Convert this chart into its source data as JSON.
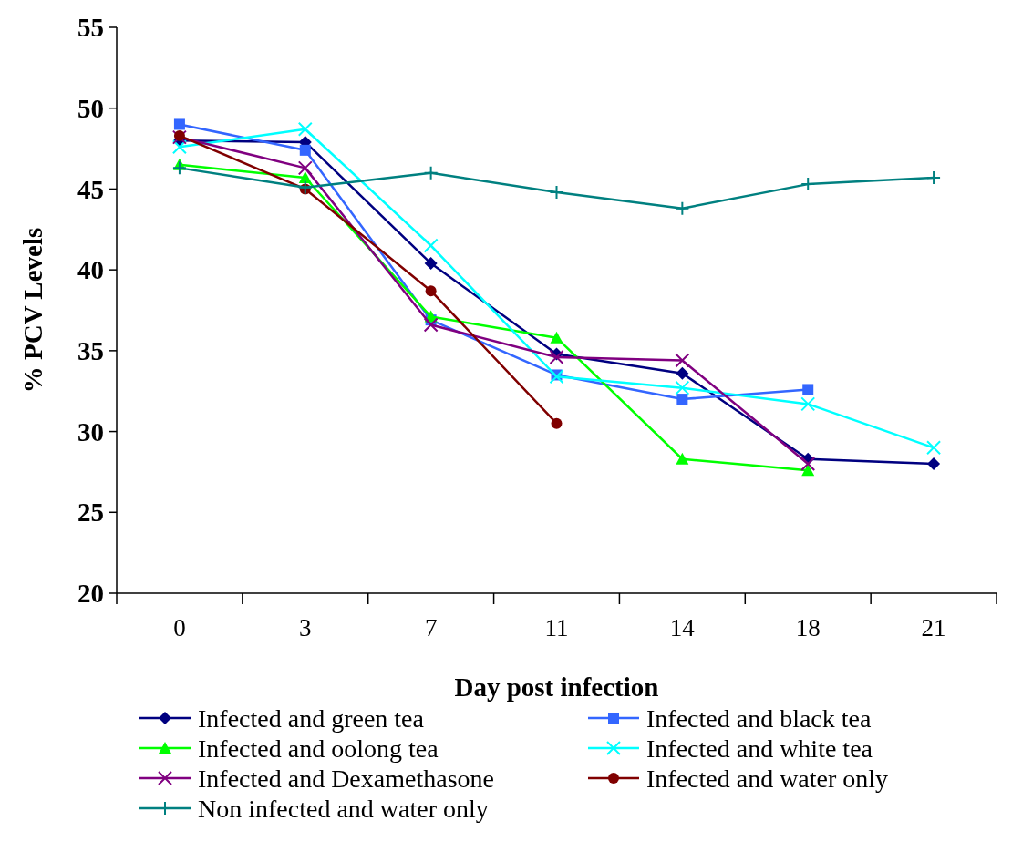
{
  "chart_data": {
    "type": "line",
    "xlabel": "Day post infection",
    "ylabel": "% PCV Levels",
    "categories": [
      "0",
      "3",
      "7",
      "11",
      "14",
      "18",
      "21"
    ],
    "ylim": [
      20,
      55
    ],
    "yticks": [
      20,
      25,
      30,
      35,
      40,
      45,
      50,
      55
    ],
    "grid": false,
    "legend": "bottom",
    "series": [
      {
        "name": "Infected and green tea",
        "color": "#000080",
        "marker": "diamond",
        "values": [
          48.0,
          47.9,
          40.4,
          34.8,
          33.6,
          28.3,
          28.0
        ]
      },
      {
        "name": "Infected and black tea",
        "color": "#3366ff",
        "marker": "square",
        "values": [
          49.0,
          47.4,
          36.9,
          33.5,
          32.0,
          32.6,
          null
        ]
      },
      {
        "name": "Infected and oolong tea",
        "color": "#00ff00",
        "marker": "triangle",
        "values": [
          46.5,
          45.7,
          37.1,
          35.8,
          28.3,
          27.6,
          null
        ]
      },
      {
        "name": "Infected and white tea",
        "color": "#00ffff",
        "marker": "cross",
        "values": [
          47.6,
          48.7,
          41.5,
          33.4,
          32.7,
          31.7,
          29.0
        ]
      },
      {
        "name": "Infected and Dexamethasone",
        "color": "#800080",
        "marker": "cross",
        "values": [
          48.2,
          46.3,
          36.6,
          34.6,
          34.4,
          28.0,
          null
        ]
      },
      {
        "name": "Infected and water only",
        "color": "#800000",
        "marker": "circle",
        "values": [
          48.3,
          45.0,
          38.7,
          30.5,
          null,
          null,
          null
        ]
      },
      {
        "name": "Non infected and water only",
        "color": "#008080",
        "marker": "plus",
        "values": [
          46.3,
          45.1,
          46.0,
          44.8,
          43.8,
          45.3,
          45.7
        ]
      }
    ]
  }
}
